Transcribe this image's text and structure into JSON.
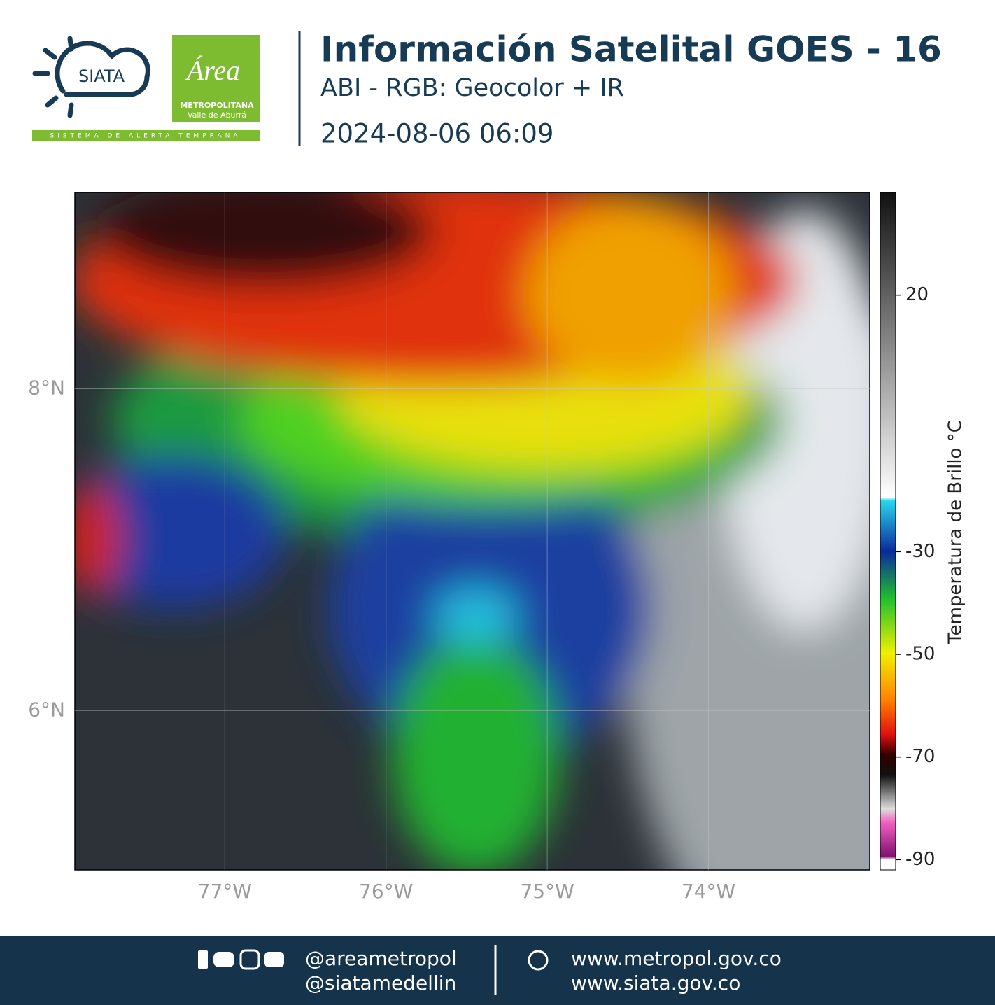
{
  "header": {
    "title": "Información Satelital GOES - 16",
    "subtitle": "ABI - RGB: Geocolor + IR",
    "datetime": "2024-08-06 06:09"
  },
  "logos": {
    "siata": "SIATA",
    "area": "Área",
    "metro": "METROPOLITANA",
    "valle": "Valle de Aburrá",
    "sistema": "SISTEMA DE ALERTA TEMPRANA"
  },
  "map": {
    "xlim": [
      -77.93,
      -73.0
    ],
    "ylim": [
      5.01,
      9.22
    ],
    "xticks": [
      {
        "value": -77,
        "label": "77°W"
      },
      {
        "value": -76,
        "label": "76°W"
      },
      {
        "value": -75,
        "label": "75°W"
      },
      {
        "value": -74,
        "label": "74°W"
      }
    ],
    "yticks": [
      {
        "value": 8,
        "label": "8°N"
      },
      {
        "value": 6,
        "label": "6°N"
      }
    ],
    "colorbar": {
      "label": "Temperatura de Brillo °C",
      "lim": [
        -92,
        40
      ],
      "ticks": [
        20,
        -30,
        -50,
        -70,
        -90
      ]
    }
  },
  "footer": {
    "social": [
      "@areametropol",
      "@siatamedellin"
    ],
    "web": [
      "www.metropol.gov.co",
      "www.siata.gov.co"
    ]
  }
}
